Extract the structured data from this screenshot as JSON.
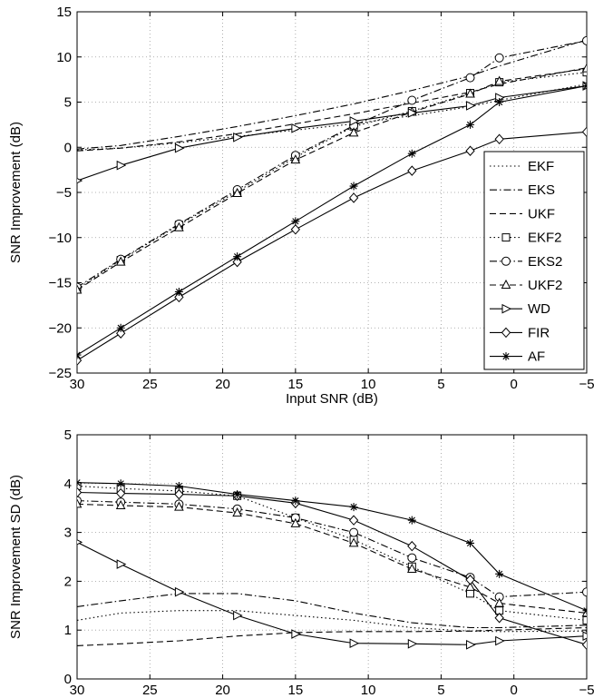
{
  "chart_data": [
    {
      "type": "line",
      "title": "",
      "xlabel": "Input SNR (dB)",
      "ylabel": "SNR Improvement (dB)",
      "xlim": [
        30,
        -5
      ],
      "ylim": [
        -25,
        15
      ],
      "x_reversed": true,
      "x_ticks": [
        30,
        25,
        20,
        15,
        10,
        5,
        0,
        -5
      ],
      "y_ticks": [
        -25,
        -20,
        -15,
        -10,
        -5,
        0,
        5,
        10,
        15
      ],
      "grid": true,
      "legend_position": "bottom-right",
      "x": [
        30,
        27,
        23,
        19,
        15,
        11,
        7,
        3,
        1,
        -5
      ],
      "series": [
        {
          "name": "EKF",
          "style": "dotted",
          "marker": "none",
          "values": [
            -0.3,
            -0.1,
            0.5,
            1.2,
            1.9,
            2.6,
            3.5,
            4.5,
            5.2,
            7.0
          ]
        },
        {
          "name": "EKS",
          "style": "dashdot",
          "marker": "none",
          "values": [
            -0.2,
            0.2,
            1.2,
            2.3,
            3.5,
            4.8,
            6.3,
            7.9,
            9.0,
            11.9
          ]
        },
        {
          "name": "UKF",
          "style": "dashed",
          "marker": "none",
          "values": [
            -0.4,
            -0.1,
            0.6,
            1.5,
            2.6,
            3.7,
            4.9,
            6.1,
            7.0,
            8.8
          ]
        },
        {
          "name": "EKF2",
          "style": "dotted",
          "marker": "square",
          "values": [
            -15.7,
            -12.5,
            -8.6,
            -4.9,
            -1.1,
            2.3,
            4.0,
            6.0,
            7.2,
            8.3
          ]
        },
        {
          "name": "EKS2",
          "style": "dashdot",
          "marker": "circle",
          "values": [
            -15.5,
            -12.4,
            -8.5,
            -4.7,
            -0.9,
            2.4,
            5.2,
            7.7,
            9.9,
            11.8
          ]
        },
        {
          "name": "UKF2",
          "style": "dashed",
          "marker": "triangle",
          "values": [
            -15.8,
            -12.7,
            -8.9,
            -5.1,
            -1.4,
            1.6,
            3.9,
            5.9,
            7.3,
            8.7
          ]
        },
        {
          "name": "WD",
          "style": "solid",
          "marker": "tri-right",
          "values": [
            -3.7,
            -2.0,
            -0.1,
            1.1,
            2.1,
            2.9,
            3.8,
            4.6,
            5.5,
            6.8
          ]
        },
        {
          "name": "FIR",
          "style": "solid",
          "marker": "diamond",
          "values": [
            -23.6,
            -20.6,
            -16.6,
            -12.7,
            -9.1,
            -5.6,
            -2.6,
            -0.4,
            0.9,
            1.7
          ]
        },
        {
          "name": "AF",
          "style": "solid",
          "marker": "star",
          "values": [
            -23.0,
            -20.0,
            -16.0,
            -12.1,
            -8.2,
            -4.3,
            -0.7,
            2.5,
            5.0,
            6.8
          ]
        }
      ]
    },
    {
      "type": "line",
      "title": "",
      "xlabel": "Input SNR (dB)",
      "ylabel": "SNR Improvement SD (dB)",
      "xlim": [
        30,
        -5
      ],
      "ylim": [
        0,
        5
      ],
      "x_reversed": true,
      "x_ticks": [
        30,
        25,
        20,
        15,
        10,
        5,
        0,
        -5
      ],
      "y_ticks": [
        0,
        1,
        2,
        3,
        4,
        5
      ],
      "grid": true,
      "x": [
        30,
        27,
        23,
        19,
        15,
        11,
        7,
        3,
        1,
        -5
      ],
      "series": [
        {
          "name": "EKF",
          "style": "dotted",
          "marker": "none",
          "values": [
            1.2,
            1.35,
            1.4,
            1.4,
            1.3,
            1.2,
            1.05,
            0.98,
            0.97,
            0.98
          ]
        },
        {
          "name": "EKS",
          "style": "dashdot",
          "marker": "none",
          "values": [
            1.48,
            1.6,
            1.75,
            1.75,
            1.6,
            1.35,
            1.15,
            1.05,
            1.05,
            1.1
          ]
        },
        {
          "name": "UKF",
          "style": "dashed",
          "marker": "none",
          "values": [
            0.68,
            0.72,
            0.78,
            0.88,
            0.95,
            0.97,
            0.97,
            0.98,
            1.0,
            1.05
          ]
        },
        {
          "name": "EKF2",
          "style": "dotted",
          "marker": "square",
          "values": [
            3.95,
            3.9,
            3.85,
            3.75,
            3.3,
            2.85,
            2.3,
            1.75,
            1.4,
            1.2
          ]
        },
        {
          "name": "EKS2",
          "style": "dashdot",
          "marker": "circle",
          "values": [
            3.65,
            3.62,
            3.58,
            3.48,
            3.3,
            3.0,
            2.48,
            2.08,
            1.68,
            1.78
          ]
        },
        {
          "name": "UKF2",
          "style": "dashed",
          "marker": "triangle",
          "values": [
            3.58,
            3.55,
            3.52,
            3.4,
            3.18,
            2.78,
            2.25,
            1.88,
            1.55,
            1.35
          ]
        },
        {
          "name": "WD",
          "style": "solid",
          "marker": "tri-right",
          "values": [
            2.8,
            2.35,
            1.78,
            1.3,
            0.92,
            0.73,
            0.72,
            0.7,
            0.78,
            0.88
          ]
        },
        {
          "name": "FIR",
          "style": "solid",
          "marker": "diamond",
          "values": [
            3.82,
            3.8,
            3.78,
            3.75,
            3.6,
            3.25,
            2.72,
            2.03,
            1.25,
            0.7
          ]
        },
        {
          "name": "AF",
          "style": "solid",
          "marker": "star",
          "values": [
            4.02,
            4.0,
            3.95,
            3.78,
            3.65,
            3.52,
            3.25,
            2.78,
            2.15,
            1.4
          ]
        }
      ]
    }
  ]
}
